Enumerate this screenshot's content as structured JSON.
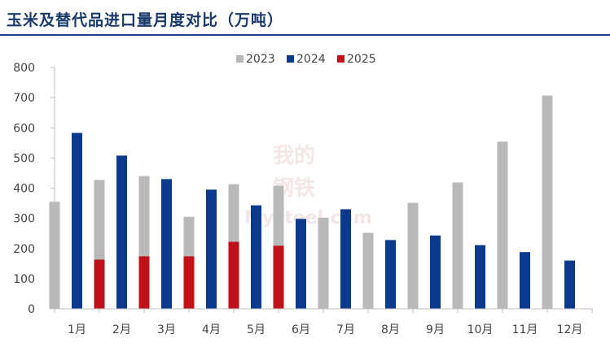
{
  "title": "玉米及替代品进口量月度对比（万吨）",
  "watermark": {
    "line1": "我的",
    "line2": "钢铁",
    "brand": "Mysteel.com"
  },
  "colors": {
    "2023": "#b9b9b9",
    "2024": "#0b3a8c",
    "2025": "#c0101a",
    "title_rule": "#1f3f8a",
    "axis": "#bfbfbf"
  },
  "chart_data": {
    "type": "bar",
    "title": "玉米及替代品进口量月度对比（万吨）",
    "categories": [
      "1月",
      "2月",
      "3月",
      "4月",
      "5月",
      "6月",
      "7月",
      "8月",
      "9月",
      "10月",
      "11月",
      "12月"
    ],
    "series": [
      {
        "name": "2023",
        "values": [
          355,
          427,
          440,
          305,
          413,
          408,
          302,
          252,
          351,
          419,
          554,
          707
        ]
      },
      {
        "name": "2024",
        "values": [
          583,
          508,
          430,
          395,
          343,
          298,
          330,
          228,
          243,
          211,
          188,
          160
        ]
      },
      {
        "name": "2025",
        "values": [
          163,
          174,
          174,
          222,
          209,
          null,
          null,
          null,
          null,
          null,
          null,
          null
        ]
      }
    ],
    "ylim": [
      0,
      800
    ],
    "yticks": [
      0,
      100,
      200,
      300,
      400,
      500,
      600,
      700,
      800
    ],
    "legend_position": "top-center",
    "grid": false
  }
}
